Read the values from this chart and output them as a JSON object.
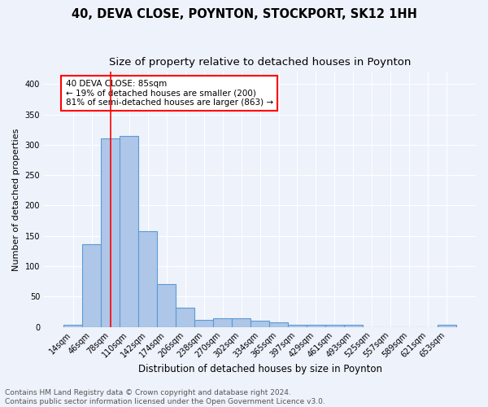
{
  "title": "40, DEVA CLOSE, POYNTON, STOCKPORT, SK12 1HH",
  "subtitle": "Size of property relative to detached houses in Poynton",
  "xlabel": "Distribution of detached houses by size in Poynton",
  "ylabel": "Number of detached properties",
  "bar_labels": [
    "14sqm",
    "46sqm",
    "78sqm",
    "110sqm",
    "142sqm",
    "174sqm",
    "206sqm",
    "238sqm",
    "270sqm",
    "302sqm",
    "334sqm",
    "365sqm",
    "397sqm",
    "429sqm",
    "461sqm",
    "493sqm",
    "525sqm",
    "557sqm",
    "589sqm",
    "621sqm",
    "653sqm"
  ],
  "bar_values": [
    4,
    136,
    311,
    315,
    157,
    70,
    32,
    11,
    14,
    14,
    10,
    7,
    4,
    4,
    4,
    4,
    0,
    0,
    0,
    0,
    3
  ],
  "bar_color": "#aec6e8",
  "bar_edge_color": "#5b9bd5",
  "red_line_x": 2.0,
  "annotation_text": "40 DEVA CLOSE: 85sqm\n← 19% of detached houses are smaller (200)\n81% of semi-detached houses are larger (863) →",
  "annotation_box_color": "white",
  "annotation_box_edge_color": "red",
  "red_line_color": "red",
  "ylim": [
    0,
    420
  ],
  "yticks": [
    0,
    50,
    100,
    150,
    200,
    250,
    300,
    350,
    400
  ],
  "background_color": "#eef2fb",
  "grid_color": "white",
  "footer": "Contains HM Land Registry data © Crown copyright and database right 2024.\nContains public sector information licensed under the Open Government Licence v3.0.",
  "title_fontsize": 10.5,
  "subtitle_fontsize": 9.5,
  "xlabel_fontsize": 8.5,
  "ylabel_fontsize": 8,
  "tick_fontsize": 7,
  "footer_fontsize": 6.5,
  "annot_fontsize": 7.5
}
